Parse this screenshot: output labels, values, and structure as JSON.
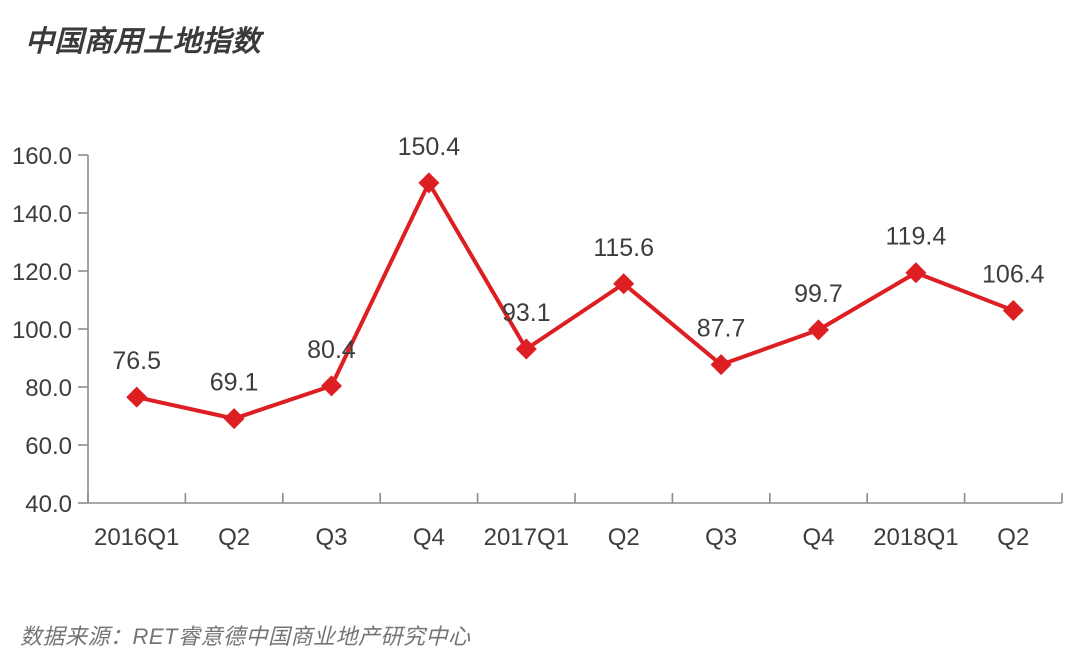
{
  "title": "中国商用土地指数",
  "source": "数据来源：RET睿意德中国商业地产研究中心",
  "colors": {
    "line": "#DD1E22",
    "marker": "#DD1E22",
    "axis": "#8C8C8C",
    "label": "#3D3D3D",
    "title": "#3A3A3A",
    "source": "#757575",
    "background": "#FFFFFF"
  },
  "chart_data": {
    "type": "line",
    "title": "中国商用土地指数",
    "categories": [
      "2016Q1",
      "Q2",
      "Q3",
      "Q4",
      "2017Q1",
      "Q2",
      "Q3",
      "Q4",
      "2018Q1",
      "Q2"
    ],
    "series": [
      {
        "name": "中国商用土地指数",
        "values": [
          76.5,
          69.1,
          80.4,
          150.4,
          93.1,
          115.6,
          87.7,
          99.7,
          119.4,
          106.4
        ]
      }
    ],
    "xlabel": "",
    "ylabel": "",
    "ylim": [
      40,
      160
    ],
    "ytick_step": 20,
    "ytick_labels": [
      "40.0",
      "60.0",
      "80.0",
      "100.0",
      "120.0",
      "140.0",
      "160.0"
    ],
    "grid": false,
    "legend": false,
    "legend_position": "none",
    "marker": "diamond",
    "data_labels": true,
    "annotation_source": "数据来源：RET睿意德中国商业地产研究中心"
  }
}
